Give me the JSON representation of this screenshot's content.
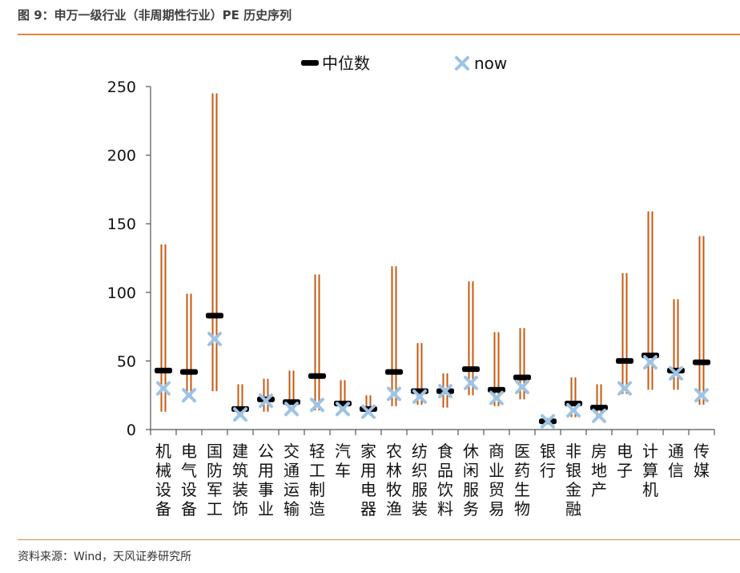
{
  "header": {
    "title": "图 9：申万一级行业（非周期性行业）PE 历史序列"
  },
  "footer": {
    "source": "资料来源：Wind，天风证券研究所"
  },
  "chart_data": {
    "type": "range",
    "title": "",
    "xlabel": "",
    "ylabel": "",
    "ylim": [
      0,
      250
    ],
    "yticks": [
      0,
      50,
      100,
      150,
      200,
      250
    ],
    "grid": false,
    "legend": {
      "position": "top",
      "entries": [
        {
          "key": "median",
          "label": "中位数",
          "color": "#000000"
        },
        {
          "key": "now",
          "label": "now",
          "color": "#9dc3e6"
        }
      ]
    },
    "colors": {
      "range": "#c55a11"
    },
    "categories": [
      "机械设备",
      "电气设备",
      "国防军工",
      "建筑装饰",
      "公用事业",
      "交通运输",
      "轻工制造",
      "汽车",
      "家用电器",
      "农林牧渔",
      "纺织服装",
      "食品饮料",
      "休闲服务",
      "商业贸易",
      "医药生物",
      "银行",
      "非银金融",
      "房地产",
      "电子",
      "计算机",
      "通信",
      "传媒"
    ],
    "series": [
      {
        "key": "max",
        "values": [
          135,
          99,
          245,
          33,
          37,
          43,
          113,
          36,
          25,
          119,
          63,
          41,
          108,
          71,
          74,
          8,
          38,
          33,
          114,
          159,
          95,
          141
        ]
      },
      {
        "key": "min",
        "values": [
          13,
          23,
          28,
          9,
          13,
          13,
          14,
          13,
          11,
          17,
          18,
          16,
          25,
          17,
          22,
          4,
          9,
          8,
          26,
          29,
          29,
          18
        ]
      },
      {
        "key": "median",
        "name": "中位数",
        "values": [
          43,
          42,
          83,
          15,
          22,
          20,
          39,
          19,
          15,
          42,
          28,
          28,
          44,
          29,
          38,
          6,
          19,
          16,
          50,
          54,
          43,
          49
        ]
      },
      {
        "key": "now",
        "name": "now",
        "values": [
          30,
          25,
          66,
          11,
          21,
          15,
          18,
          15,
          13,
          26,
          24,
          28,
          34,
          23,
          31,
          6,
          14,
          10,
          30,
          49,
          41,
          25
        ]
      }
    ]
  }
}
